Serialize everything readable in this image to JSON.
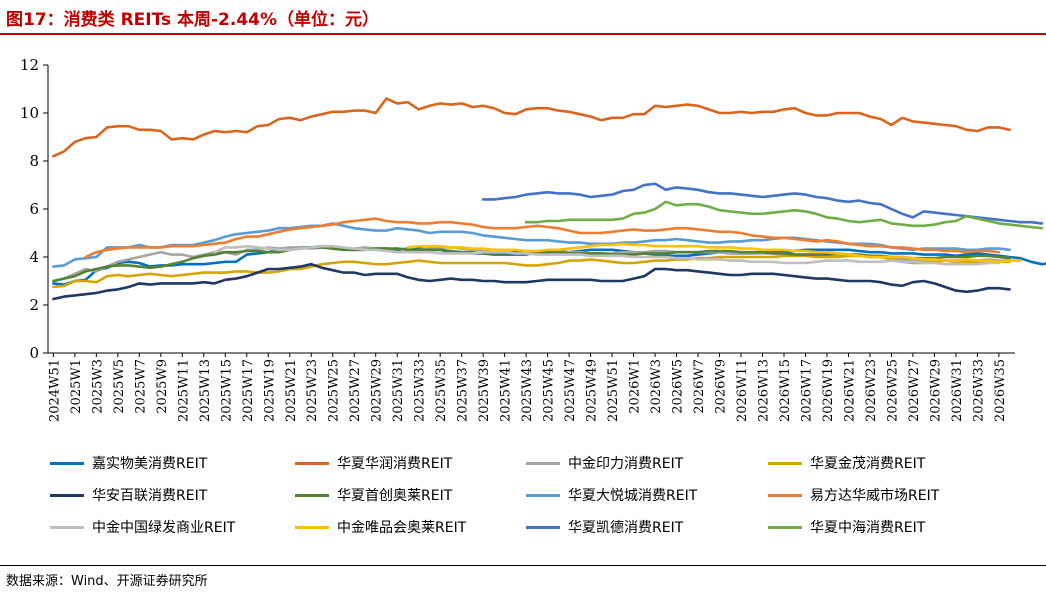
{
  "header": {
    "title": "图17：消费类 REITs 本周-2.44%（单位：元）"
  },
  "footer": {
    "source": "数据来源：Wind、开源证券研究所"
  },
  "chart_data": {
    "type": "line",
    "title": "图17：消费类 REITs 本周-2.44%（单位：元）",
    "xlabel": "",
    "ylabel": "",
    "ylim": [
      0,
      12
    ],
    "yticks": [
      0,
      2,
      4,
      6,
      8,
      10,
      12
    ],
    "grid": false,
    "legend_position": "bottom",
    "x_tick_labels": [
      "2024W51",
      "2025W1",
      "2025W3",
      "2025W5",
      "2025W7",
      "2025W9",
      "2025W11",
      "2025W13",
      "2025W15",
      "2025W17",
      "2025W19",
      "2025W21",
      "2025W23",
      "2025W25",
      "2025W27",
      "2025W29",
      "2025W31",
      "2025W33",
      "2025W35",
      "2025W37",
      "2025W39",
      "2025W41",
      "2025W43",
      "2025W45",
      "2025W47",
      "2025W49",
      "2025W51",
      "2026W1",
      "2026W3",
      "2026W5",
      "2026W7",
      "2026W9",
      "2026W11",
      "2026W13",
      "2026W15",
      "2026W17",
      "2026W19",
      "2026W21",
      "2026W23",
      "2026W25",
      "2026W27",
      "2026W29",
      "2026W31",
      "2026W33",
      "2026W35"
    ],
    "series": [
      {
        "name": "嘉实物美消费REIT",
        "color": "#0070c0",
        "start": 0,
        "values": [
          2.9,
          2.85,
          3.0,
          3.05,
          3.45,
          3.55,
          3.75,
          3.8,
          3.75,
          3.6,
          3.65,
          3.65,
          3.7,
          3.7,
          3.7,
          3.75,
          3.8,
          3.8,
          4.1,
          4.15,
          4.2,
          4.3,
          4.3,
          4.4,
          4.4,
          4.45,
          4.4,
          4.35,
          4.3,
          4.3,
          4.35,
          4.35,
          4.3,
          4.35,
          4.35,
          4.3,
          4.3,
          4.2,
          4.2,
          4.15,
          4.15,
          4.1,
          4.1,
          4.1,
          4.1,
          4.2,
          4.25,
          4.25,
          4.2,
          4.25,
          4.3,
          4.3,
          4.3,
          4.25,
          4.2,
          4.15,
          4.1,
          4.05,
          4.05,
          4.05,
          4.1,
          4.15,
          4.2,
          4.15,
          4.15,
          4.15,
          4.2,
          4.2,
          4.2,
          4.25,
          4.3,
          4.3,
          4.3,
          4.3,
          4.3,
          4.25,
          4.2,
          4.2,
          4.15,
          4.15,
          4.15,
          4.1,
          4.1,
          4.1,
          4.05,
          4.1,
          4.15,
          4.1,
          4.05,
          4.0,
          3.95,
          3.8,
          3.7,
          3.75,
          3.8,
          3.75,
          3.6,
          3.55,
          3.5,
          3.45,
          3.45,
          3.4,
          3.4,
          3.25
        ]
      },
      {
        "name": "华夏华润消费REIT",
        "color": "#d9661f",
        "start": 0,
        "values": [
          8.2,
          8.4,
          8.8,
          8.95,
          9.0,
          9.4,
          9.45,
          9.45,
          9.3,
          9.3,
          9.25,
          8.9,
          8.95,
          8.9,
          9.1,
          9.25,
          9.2,
          9.25,
          9.2,
          9.45,
          9.5,
          9.75,
          9.8,
          9.7,
          9.85,
          9.95,
          10.05,
          10.05,
          10.1,
          10.1,
          10.0,
          10.6,
          10.4,
          10.45,
          10.15,
          10.3,
          10.4,
          10.35,
          10.4,
          10.25,
          10.3,
          10.2,
          10.0,
          9.95,
          10.15,
          10.2,
          10.2,
          10.1,
          10.05,
          9.95,
          9.85,
          9.7,
          9.8,
          9.8,
          9.95,
          9.95,
          10.3,
          10.25,
          10.3,
          10.35,
          10.3,
          10.15,
          10.0,
          10.0,
          10.05,
          10.0,
          10.05,
          10.05,
          10.15,
          10.2,
          10.0,
          9.9,
          9.9,
          10.0,
          10.0,
          10.0,
          9.85,
          9.75,
          9.5,
          9.8,
          9.65,
          9.6,
          9.55,
          9.5,
          9.45,
          9.3,
          9.25,
          9.4,
          9.4,
          9.3
        ]
      },
      {
        "name": "中金印力消费REIT",
        "color": "#a5a5a5",
        "start": 0,
        "values": [
          3.0,
          3.1,
          3.3,
          3.5,
          3.4,
          3.6,
          3.8,
          3.9,
          4.0,
          4.1,
          4.2,
          4.1,
          4.1,
          4.0,
          4.1,
          4.2,
          4.2,
          4.1,
          4.3,
          4.3,
          4.4,
          4.35,
          4.4,
          4.4,
          4.35,
          4.4,
          4.35,
          4.3,
          4.35,
          4.4,
          4.35,
          4.3,
          4.35,
          4.3,
          4.3,
          4.35,
          4.4,
          4.4,
          4.35,
          4.3,
          4.3,
          4.2,
          4.2,
          4.2,
          4.15,
          4.2,
          4.15,
          4.2,
          4.2,
          4.2,
          4.15,
          4.15,
          4.15,
          4.2,
          4.2,
          4.2,
          4.25,
          4.25,
          4.2,
          4.2,
          4.2,
          4.2,
          4.2,
          4.15,
          4.15,
          4.15,
          4.15,
          4.15,
          4.15,
          4.1,
          4.1,
          4.1,
          4.1,
          4.05,
          4.05,
          4.05,
          4.0,
          4.0,
          3.95,
          3.9,
          3.85,
          3.85,
          3.85,
          3.85,
          3.85,
          3.8,
          3.85,
          3.9,
          3.85,
          3.85
        ]
      },
      {
        "name": "华夏金茂消费REIT",
        "color": "#d4a500",
        "start": 0,
        "values": [
          2.75,
          2.8,
          3.0,
          3.0,
          2.95,
          3.2,
          3.25,
          3.2,
          3.25,
          3.3,
          3.25,
          3.2,
          3.25,
          3.3,
          3.35,
          3.35,
          3.35,
          3.4,
          3.4,
          3.35,
          3.35,
          3.4,
          3.5,
          3.5,
          3.6,
          3.7,
          3.75,
          3.8,
          3.8,
          3.75,
          3.7,
          3.7,
          3.75,
          3.8,
          3.85,
          3.8,
          3.75,
          3.75,
          3.75,
          3.75,
          3.75,
          3.75,
          3.75,
          3.7,
          3.65,
          3.65,
          3.7,
          3.75,
          3.85,
          3.85,
          3.9,
          3.85,
          3.8,
          3.75,
          3.75,
          3.8,
          3.85,
          3.85,
          3.9,
          3.9,
          3.95,
          3.95,
          4.0,
          4.0,
          4.0,
          4.0,
          4.0,
          4.0,
          4.05,
          4.05,
          4.05,
          4.0,
          4.0,
          4.0,
          4.05,
          4.05,
          4.0,
          4.0,
          3.9,
          3.8,
          3.75,
          3.75,
          3.8,
          3.85,
          3.8,
          3.8,
          3.75,
          3.75,
          3.8,
          3.8
        ]
      },
      {
        "name": "华安百联消费REIT",
        "color": "#1f3864",
        "start": 0,
        "values": [
          2.25,
          2.35,
          2.4,
          2.45,
          2.5,
          2.6,
          2.65,
          2.75,
          2.9,
          2.85,
          2.9,
          2.9,
          2.9,
          2.9,
          2.95,
          2.9,
          3.05,
          3.1,
          3.2,
          3.35,
          3.5,
          3.5,
          3.55,
          3.6,
          3.7,
          3.55,
          3.45,
          3.35,
          3.35,
          3.25,
          3.3,
          3.3,
          3.3,
          3.15,
          3.05,
          3.0,
          3.05,
          3.1,
          3.05,
          3.05,
          3.0,
          3.0,
          2.95,
          2.95,
          2.95,
          3.0,
          3.05,
          3.05,
          3.05,
          3.05,
          3.05,
          3.0,
          3.0,
          3.0,
          3.1,
          3.2,
          3.5,
          3.5,
          3.45,
          3.45,
          3.4,
          3.35,
          3.3,
          3.25,
          3.25,
          3.3,
          3.3,
          3.3,
          3.25,
          3.2,
          3.15,
          3.1,
          3.1,
          3.05,
          3.0,
          3.0,
          3.0,
          2.95,
          2.85,
          2.8,
          2.95,
          3.0,
          2.9,
          2.75,
          2.6,
          2.55,
          2.6,
          2.7,
          2.7,
          2.65
        ]
      },
      {
        "name": "华夏首创奥莱REIT",
        "color": "#548235",
        "start": 0,
        "values": [
          3.0,
          3.1,
          3.2,
          3.4,
          3.5,
          3.6,
          3.65,
          3.65,
          3.6,
          3.55,
          3.6,
          3.7,
          3.8,
          3.95,
          4.05,
          4.1,
          4.2,
          4.2,
          4.25,
          4.25,
          4.2,
          4.2,
          4.3,
          4.35,
          4.4,
          4.4,
          4.35,
          4.3,
          4.3,
          4.3,
          4.35,
          4.35,
          4.35,
          4.3,
          4.3,
          4.3,
          4.3,
          4.25,
          4.2,
          4.2,
          4.15,
          4.15,
          4.15,
          4.2,
          4.15,
          4.15,
          4.2,
          4.2,
          4.15,
          4.15,
          4.15,
          4.15,
          4.1,
          4.1,
          4.1,
          4.15,
          4.15,
          4.15,
          4.2,
          4.2,
          4.2,
          4.25,
          4.25,
          4.25,
          4.2,
          4.2,
          4.2,
          4.15,
          4.15,
          4.1,
          4.1,
          4.1,
          4.1,
          4.15,
          4.1,
          4.1,
          4.05,
          4.05,
          4.0,
          4.0,
          3.95,
          3.95,
          3.95,
          4.0,
          4.0,
          4.0,
          4.05,
          4.05,
          4.0,
          3.95
        ]
      },
      {
        "name": "华夏大悦城消费REIT",
        "color": "#5b9bd5",
        "start": 0,
        "values": [
          3.6,
          3.65,
          3.9,
          3.95,
          4.0,
          4.4,
          4.4,
          4.4,
          4.5,
          4.4,
          4.4,
          4.5,
          4.5,
          4.5,
          4.6,
          4.7,
          4.85,
          4.95,
          5.0,
          5.05,
          5.1,
          5.2,
          5.2,
          5.25,
          5.3,
          5.3,
          5.4,
          5.3,
          5.2,
          5.15,
          5.1,
          5.1,
          5.2,
          5.15,
          5.1,
          5.0,
          5.05,
          5.05,
          5.05,
          5.0,
          4.9,
          4.85,
          4.8,
          4.75,
          4.7,
          4.7,
          4.7,
          4.65,
          4.6,
          4.6,
          4.55,
          4.55,
          4.55,
          4.6,
          4.6,
          4.65,
          4.7,
          4.7,
          4.75,
          4.7,
          4.65,
          4.6,
          4.6,
          4.65,
          4.65,
          4.7,
          4.7,
          4.75,
          4.8,
          4.8,
          4.75,
          4.7,
          4.65,
          4.6,
          4.55,
          4.55,
          4.55,
          4.5,
          4.4,
          4.35,
          4.3,
          4.35,
          4.35,
          4.35,
          4.35,
          4.3,
          4.3,
          4.35,
          4.35,
          4.3
        ]
      },
      {
        "name": "易方达华威市场REIT",
        "color": "#ed7d31",
        "start": 3,
        "values": [
          4.0,
          4.2,
          4.3,
          4.35,
          4.4,
          4.4,
          4.4,
          4.4,
          4.45,
          4.45,
          4.45,
          4.5,
          4.55,
          4.6,
          4.75,
          4.85,
          4.85,
          4.95,
          5.05,
          5.15,
          5.2,
          5.25,
          5.3,
          5.35,
          5.45,
          5.5,
          5.55,
          5.6,
          5.5,
          5.45,
          5.45,
          5.4,
          5.4,
          5.45,
          5.45,
          5.4,
          5.35,
          5.25,
          5.2,
          5.2,
          5.2,
          5.25,
          5.3,
          5.25,
          5.2,
          5.1,
          5.0,
          5.0,
          5.0,
          5.05,
          5.1,
          5.15,
          5.1,
          5.1,
          5.15,
          5.2,
          5.2,
          5.15,
          5.1,
          5.05,
          5.05,
          5.0,
          4.9,
          4.85,
          4.8,
          4.8,
          4.75,
          4.7,
          4.65,
          4.7,
          4.65,
          4.55,
          4.5,
          4.45,
          4.45,
          4.4,
          4.4,
          4.35,
          4.3,
          4.3,
          4.25,
          4.25,
          4.2,
          4.25,
          4.25,
          4.2
        ]
      },
      {
        "name": "中金中国绿发商业REIT",
        "color": "#bfbfbf",
        "start": 15,
        "values": [
          4.2,
          4.4,
          4.4,
          4.45,
          4.4,
          4.35,
          4.3,
          4.3,
          4.35,
          4.4,
          4.45,
          4.45,
          4.4,
          4.35,
          4.3,
          4.3,
          4.25,
          4.2,
          4.2,
          4.2,
          4.2,
          4.15,
          4.15,
          4.15,
          4.15,
          4.2,
          4.2,
          4.2,
          4.15,
          4.15,
          4.1,
          4.1,
          4.1,
          4.1,
          4.1,
          4.05,
          4.05,
          4.05,
          4.05,
          4.0,
          4.0,
          4.0,
          4.0,
          3.95,
          3.95,
          3.9,
          3.9,
          3.9,
          3.85,
          3.85,
          3.8,
          3.8,
          3.8,
          3.75,
          3.75,
          3.75,
          3.8,
          3.85,
          3.85,
          3.85,
          3.8,
          3.8,
          3.8,
          3.85,
          3.8,
          3.8,
          3.75,
          3.75,
          3.7,
          3.7,
          3.7,
          3.7,
          3.75,
          3.75
        ]
      },
      {
        "name": "中金唯品会奥莱REIT",
        "color": "#ffc000",
        "start": 33,
        "values": [
          4.4,
          4.45,
          4.45,
          4.45,
          4.4,
          4.4,
          4.35,
          4.35,
          4.3,
          4.3,
          4.3,
          4.25,
          4.25,
          4.3,
          4.3,
          4.35,
          4.4,
          4.45,
          4.5,
          4.5,
          4.55,
          4.5,
          4.5,
          4.45,
          4.45,
          4.45,
          4.45,
          4.45,
          4.4,
          4.4,
          4.4,
          4.35,
          4.35,
          4.3,
          4.3,
          4.3,
          4.25,
          4.25,
          4.2,
          4.2,
          4.15,
          4.1,
          4.05,
          4.0,
          4.0,
          4.0,
          4.0,
          3.95,
          3.9,
          3.9,
          3.85,
          3.85,
          3.9,
          3.85,
          3.85,
          3.8,
          3.85,
          3.85
        ]
      },
      {
        "name": "华夏凯德消费REIT",
        "color": "#4472c4",
        "start": 40,
        "values": [
          6.4,
          6.4,
          6.45,
          6.5,
          6.6,
          6.65,
          6.7,
          6.65,
          6.65,
          6.6,
          6.5,
          6.55,
          6.6,
          6.75,
          6.8,
          7.0,
          7.05,
          6.8,
          6.9,
          6.85,
          6.8,
          6.7,
          6.65,
          6.65,
          6.6,
          6.55,
          6.5,
          6.55,
          6.6,
          6.65,
          6.6,
          6.5,
          6.45,
          6.35,
          6.3,
          6.35,
          6.25,
          6.2,
          6.0,
          5.8,
          5.65,
          5.9,
          5.85,
          5.8,
          5.75,
          5.7,
          5.65,
          5.6,
          5.55,
          5.5,
          5.45,
          5.45,
          5.4
        ]
      },
      {
        "name": "华夏中海消费REIT",
        "color": "#70ad47",
        "start": 44,
        "values": [
          5.45,
          5.45,
          5.5,
          5.5,
          5.55,
          5.55,
          5.55,
          5.55,
          5.55,
          5.6,
          5.8,
          5.85,
          6.0,
          6.3,
          6.15,
          6.2,
          6.2,
          6.1,
          5.95,
          5.9,
          5.85,
          5.8,
          5.8,
          5.85,
          5.9,
          5.95,
          5.9,
          5.8,
          5.65,
          5.6,
          5.5,
          5.45,
          5.5,
          5.55,
          5.4,
          5.35,
          5.3,
          5.3,
          5.35,
          5.45,
          5.5,
          5.7,
          5.6,
          5.5,
          5.4,
          5.35,
          5.3,
          5.25,
          5.2
        ]
      }
    ]
  }
}
